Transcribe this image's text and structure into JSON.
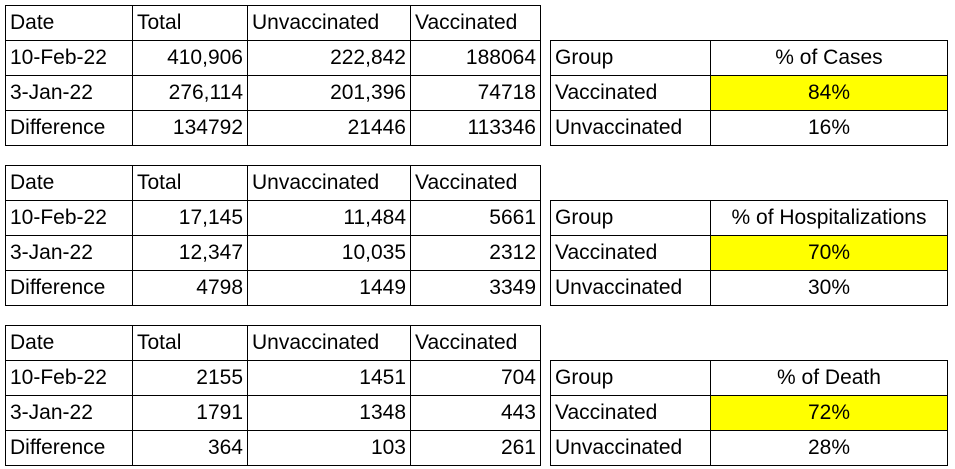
{
  "blocks": [
    {
      "left": {
        "headers": [
          "Date",
          "Total",
          "Unvaccinated",
          "Vaccinated"
        ],
        "rows": [
          [
            "10-Feb-22",
            "410,906",
            "222,842",
            "188064"
          ],
          [
            "3-Jan-22",
            "276,114",
            "201,396",
            "74718"
          ],
          [
            "Difference",
            "134792",
            "21446",
            "113346"
          ]
        ]
      },
      "right": {
        "headers": [
          "Group",
          "% of Cases"
        ],
        "rows": [
          [
            "Vaccinated",
            "84%"
          ],
          [
            "Unvaccinated",
            "16%"
          ]
        ]
      }
    },
    {
      "left": {
        "headers": [
          "Date",
          "Total",
          "Unvaccinated",
          "Vaccinated"
        ],
        "rows": [
          [
            "10-Feb-22",
            "17,145",
            "11,484",
            "5661"
          ],
          [
            "3-Jan-22",
            "12,347",
            "10,035",
            "2312"
          ],
          [
            "Difference",
            "4798",
            "1449",
            "3349"
          ]
        ]
      },
      "right": {
        "headers": [
          "Group",
          "% of Hospitalizations"
        ],
        "rows": [
          [
            "Vaccinated",
            "70%"
          ],
          [
            "Unvaccinated",
            "30%"
          ]
        ]
      }
    },
    {
      "left": {
        "headers": [
          "Date",
          "Total",
          "Unvaccinated",
          "Vaccinated"
        ],
        "rows": [
          [
            "10-Feb-22",
            "2155",
            "1451",
            "704"
          ],
          [
            "3-Jan-22",
            "1791",
            "1348",
            "443"
          ],
          [
            "Difference",
            "364",
            "103",
            "261"
          ]
        ]
      },
      "right": {
        "headers": [
          "Group",
          "% of Death"
        ],
        "rows": [
          [
            "Vaccinated",
            "72%"
          ],
          [
            "Unvaccinated",
            "28%"
          ]
        ]
      }
    }
  ],
  "colors": {
    "highlight": "#ffff00",
    "border": "#000000"
  }
}
